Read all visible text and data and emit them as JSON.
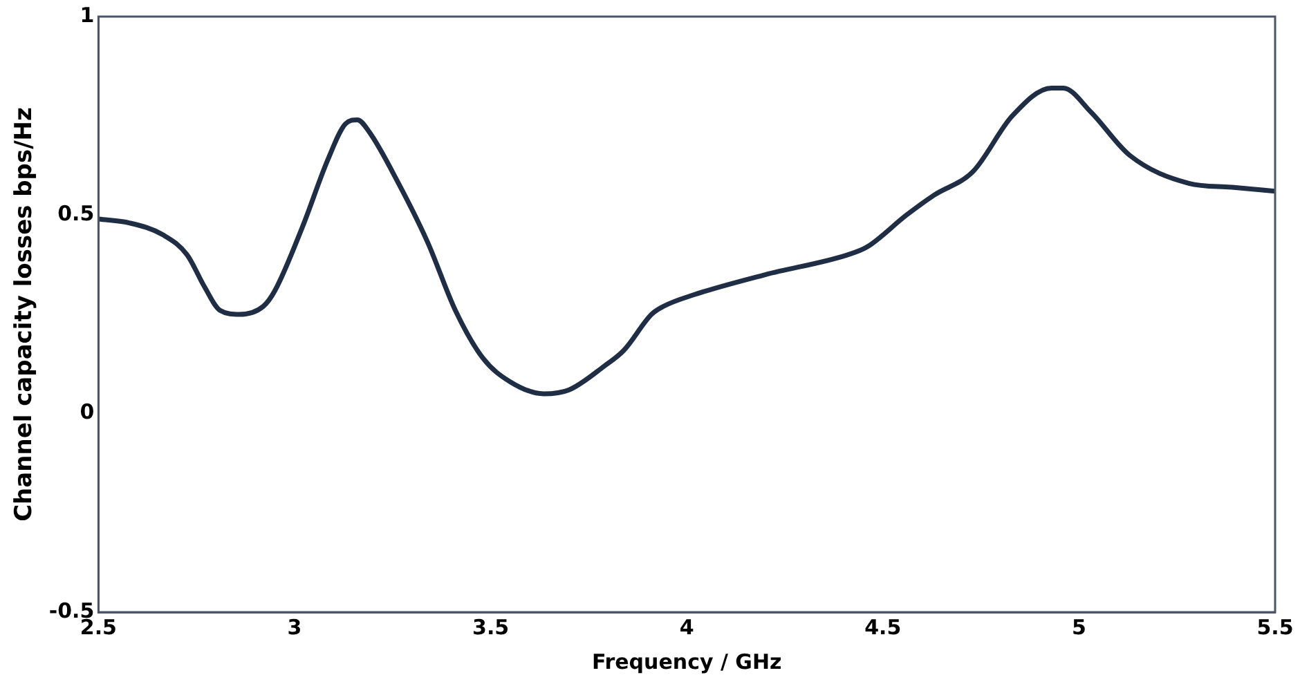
{
  "chart_data": {
    "type": "line",
    "xlabel": "Frequency / GHz",
    "ylabel": "Channel capacity losses bps/Hz",
    "xlim": [
      2.5,
      5.5
    ],
    "xticks": [
      2.5,
      3,
      3.5,
      4,
      4.5,
      5,
      5.5
    ],
    "ylim": [
      -0.5,
      1
    ],
    "yticks": [
      -0.5,
      0,
      0.5,
      1
    ],
    "grid": false,
    "legend": false,
    "marker": "none",
    "line_style": "solid",
    "series": [
      {
        "color": "#1f2d45",
        "x": [
          2.5,
          2.58,
          2.665,
          2.726,
          2.77,
          2.81,
          2.86,
          2.92,
          2.95,
          3.02,
          3.085,
          3.13,
          3.16,
          3.19,
          3.265,
          3.34,
          3.41,
          3.48,
          3.55,
          3.635,
          3.7,
          3.79,
          3.84,
          3.91,
          3.94,
          4.02,
          4.2,
          4.41,
          4.46,
          4.56,
          4.63,
          4.73,
          4.83,
          4.93,
          4.96,
          5.03,
          5.13,
          5.28,
          5.39,
          5.5
        ],
        "values": [
          0.49,
          0.48,
          0.45,
          0.4,
          0.32,
          0.26,
          0.25,
          0.27,
          0.31,
          0.47,
          0.64,
          0.73,
          0.74,
          0.71,
          0.58,
          0.43,
          0.26,
          0.14,
          0.08,
          0.05,
          0.06,
          0.12,
          0.16,
          0.25,
          0.27,
          0.3,
          0.35,
          0.4,
          0.42,
          0.5,
          0.55,
          0.61,
          0.75,
          0.82,
          0.82,
          0.76,
          0.65,
          0.58,
          0.57,
          0.56
        ]
      }
    ]
  }
}
